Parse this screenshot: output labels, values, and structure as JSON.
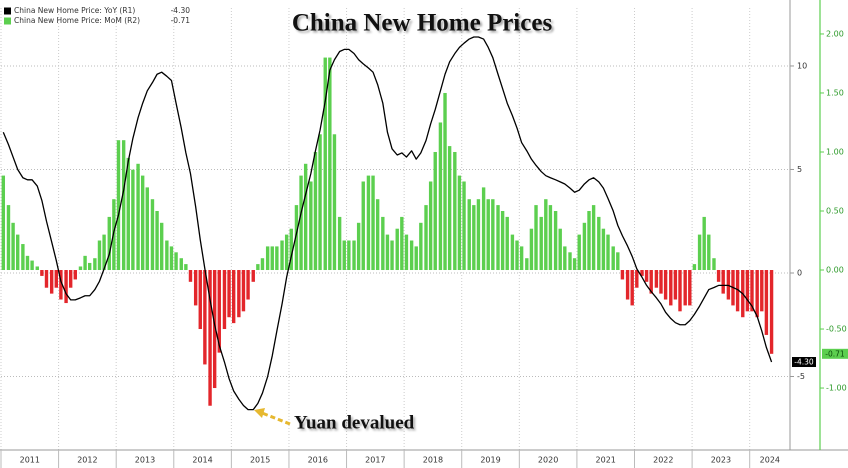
{
  "chart_data": {
    "type": "bar",
    "title": "China New Home Prices",
    "annotation": "Yuan devalued",
    "x": [
      2011.04,
      2011.13,
      2011.21,
      2011.29,
      2011.38,
      2011.46,
      2011.54,
      2011.63,
      2011.71,
      2011.79,
      2011.88,
      2011.96,
      2012.04,
      2012.13,
      2012.21,
      2012.29,
      2012.38,
      2012.46,
      2012.54,
      2012.63,
      2012.71,
      2012.79,
      2012.88,
      2012.96,
      2013.04,
      2013.13,
      2013.21,
      2013.29,
      2013.38,
      2013.46,
      2013.54,
      2013.63,
      2013.71,
      2013.79,
      2013.88,
      2013.96,
      2014.04,
      2014.13,
      2014.21,
      2014.29,
      2014.38,
      2014.46,
      2014.54,
      2014.63,
      2014.71,
      2014.79,
      2014.88,
      2014.96,
      2015.04,
      2015.13,
      2015.21,
      2015.29,
      2015.38,
      2015.46,
      2015.54,
      2015.63,
      2015.71,
      2015.79,
      2015.88,
      2015.96,
      2016.04,
      2016.13,
      2016.21,
      2016.29,
      2016.38,
      2016.46,
      2016.54,
      2016.63,
      2016.71,
      2016.79,
      2016.88,
      2016.96,
      2017.04,
      2017.13,
      2017.21,
      2017.29,
      2017.38,
      2017.46,
      2017.54,
      2017.63,
      2017.71,
      2017.79,
      2017.88,
      2017.96,
      2018.04,
      2018.13,
      2018.21,
      2018.29,
      2018.38,
      2018.46,
      2018.54,
      2018.63,
      2018.71,
      2018.79,
      2018.88,
      2018.96,
      2019.04,
      2019.13,
      2019.21,
      2019.29,
      2019.38,
      2019.46,
      2019.54,
      2019.63,
      2019.71,
      2019.79,
      2019.88,
      2019.96,
      2020.04,
      2020.13,
      2020.21,
      2020.29,
      2020.38,
      2020.46,
      2020.54,
      2020.63,
      2020.71,
      2020.79,
      2020.88,
      2020.96,
      2021.04,
      2021.13,
      2021.21,
      2021.29,
      2021.38,
      2021.46,
      2021.54,
      2021.63,
      2021.71,
      2021.79,
      2021.88,
      2021.96,
      2022.04,
      2022.13,
      2022.21,
      2022.29,
      2022.38,
      2022.46,
      2022.54,
      2022.63,
      2022.71,
      2022.79,
      2022.88,
      2022.96,
      2023.04,
      2023.13,
      2023.21,
      2023.29,
      2023.38,
      2023.46,
      2023.54,
      2023.63,
      2023.71,
      2023.79,
      2023.88,
      2023.96,
      2024.04,
      2024.13,
      2024.21,
      2024.29,
      2024.38
    ],
    "series": [
      {
        "name": "China New Home Price: YoY (R1)",
        "type": "line",
        "axis": "y",
        "color": "#000000",
        "last_value_label": "-4.30",
        "values": [
          6.8,
          6.2,
          5.6,
          5.0,
          4.6,
          4.5,
          4.5,
          4.2,
          3.5,
          2.5,
          1.5,
          0.6,
          -0.4,
          -1.0,
          -1.3,
          -1.3,
          -1.2,
          -1.1,
          -1.1,
          -0.8,
          -0.4,
          0.2,
          0.9,
          2.0,
          2.8,
          4.0,
          5.4,
          6.5,
          7.5,
          8.2,
          8.8,
          9.2,
          9.6,
          9.7,
          9.5,
          9.3,
          8.2,
          7.0,
          5.8,
          4.8,
          3.2,
          1.6,
          0.2,
          -1.3,
          -2.5,
          -3.5,
          -4.3,
          -5.1,
          -5.7,
          -6.1,
          -6.4,
          -6.6,
          -6.6,
          -6.3,
          -5.8,
          -5.0,
          -4.0,
          -2.8,
          -1.5,
          -0.2,
          0.8,
          1.9,
          2.9,
          3.8,
          4.8,
          5.9,
          6.9,
          8.3,
          9.8,
          10.3,
          10.7,
          10.8,
          10.8,
          10.6,
          10.3,
          10.1,
          9.9,
          9.7,
          9.1,
          8.2,
          6.8,
          6.0,
          5.7,
          5.8,
          5.6,
          5.9,
          5.5,
          5.8,
          6.4,
          7.2,
          7.9,
          8.8,
          9.6,
          10.2,
          10.6,
          10.9,
          11.1,
          11.3,
          11.4,
          11.4,
          11.3,
          10.9,
          10.4,
          9.6,
          8.9,
          8.2,
          7.6,
          7.0,
          6.3,
          5.9,
          5.5,
          5.2,
          4.9,
          4.7,
          4.6,
          4.5,
          4.4,
          4.3,
          4.1,
          3.9,
          4.0,
          4.3,
          4.5,
          4.6,
          4.4,
          4.1,
          3.6,
          3.0,
          2.3,
          1.8,
          1.3,
          0.8,
          0.2,
          -0.2,
          -0.6,
          -0.9,
          -1.2,
          -1.5,
          -1.9,
          -2.2,
          -2.4,
          -2.5,
          -2.5,
          -2.3,
          -2.0,
          -1.6,
          -1.2,
          -0.8,
          -0.7,
          -0.6,
          -0.6,
          -0.6,
          -0.7,
          -0.8,
          -1.0,
          -1.3,
          -1.6,
          -2.1,
          -2.8,
          -3.6,
          -4.3
        ]
      },
      {
        "name": "China New Home Price: MoM (R2)",
        "type": "bar",
        "axis": "y2",
        "color": "#5ccf4f",
        "negative_color": "#e3262b",
        "last_value_label": "-0.71",
        "values": [
          0.8,
          0.55,
          0.4,
          0.3,
          0.22,
          0.12,
          0.08,
          0.03,
          -0.05,
          -0.15,
          -0.2,
          -0.15,
          -0.25,
          -0.28,
          -0.15,
          -0.08,
          0.03,
          0.12,
          0.06,
          0.1,
          0.25,
          0.3,
          0.45,
          0.6,
          1.1,
          1.1,
          0.95,
          0.85,
          0.9,
          0.8,
          0.7,
          0.6,
          0.5,
          0.4,
          0.25,
          0.2,
          0.15,
          0.1,
          0.05,
          -0.1,
          -0.3,
          -0.5,
          -0.8,
          -1.15,
          -1.0,
          -0.7,
          -0.5,
          -0.4,
          -0.45,
          -0.4,
          -0.35,
          -0.25,
          -0.1,
          0.05,
          0.1,
          0.2,
          0.2,
          0.2,
          0.25,
          0.3,
          0.35,
          0.55,
          0.8,
          0.9,
          0.75,
          1.0,
          1.15,
          1.8,
          1.8,
          1.15,
          0.45,
          0.25,
          0.25,
          0.25,
          0.4,
          0.75,
          0.8,
          0.8,
          0.6,
          0.45,
          0.3,
          0.25,
          0.35,
          0.45,
          0.3,
          0.25,
          0.2,
          0.4,
          0.55,
          0.75,
          1.0,
          1.25,
          1.5,
          1.05,
          1.0,
          0.8,
          0.75,
          0.6,
          0.55,
          0.6,
          0.7,
          0.6,
          0.6,
          0.55,
          0.5,
          0.45,
          0.3,
          0.25,
          0.2,
          0.1,
          0.35,
          0.55,
          0.45,
          0.6,
          0.55,
          0.5,
          0.35,
          0.2,
          0.15,
          0.1,
          0.3,
          0.4,
          0.5,
          0.55,
          0.45,
          0.35,
          0.3,
          0.2,
          0.15,
          -0.08,
          -0.25,
          -0.3,
          -0.15,
          -0.05,
          -0.1,
          -0.2,
          -0.15,
          -0.2,
          -0.25,
          -0.3,
          -0.25,
          -0.35,
          -0.3,
          -0.3,
          0.05,
          0.3,
          0.45,
          0.3,
          0.1,
          -0.1,
          -0.2,
          -0.25,
          -0.3,
          -0.35,
          -0.4,
          -0.35,
          -0.35,
          -0.4,
          -0.35,
          -0.55,
          -0.71
        ]
      }
    ],
    "xlim": [
      2011,
      2024.7
    ],
    "xticks": [
      2011,
      2012,
      2013,
      2014,
      2015,
      2016,
      2017,
      2018,
      2019,
      2020,
      2021,
      2022,
      2023,
      2024
    ],
    "ylim": [
      -8.55,
      12.8
    ],
    "yticks": [
      -5,
      0,
      5,
      10
    ],
    "y2lim": [
      -1.525,
      2.22
    ],
    "y2ticks": [
      {
        "value": -1,
        "label": "-1.00"
      },
      {
        "value": -0.5,
        "label": "-0.50"
      },
      {
        "value": 0,
        "label": "0.00"
      },
      {
        "value": 0.5,
        "label": "0.50"
      },
      {
        "value": 1,
        "label": "1.00"
      },
      {
        "value": 1.5,
        "label": "1.50"
      },
      {
        "value": 2,
        "label": "2.00"
      }
    ],
    "grid": true,
    "legend": "top-left"
  }
}
